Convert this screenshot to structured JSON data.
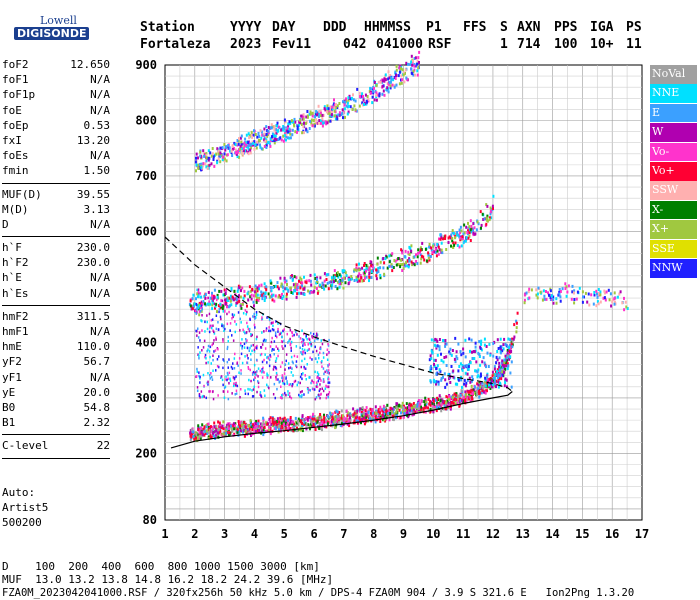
{
  "logo": {
    "top": "Lowell",
    "bottom": "DIGISONDE"
  },
  "header": {
    "labels": [
      "Station",
      "YYYY",
      "DAY",
      "DDD",
      "HHMMSS",
      "P1",
      "FFS",
      "S",
      "AXN",
      "PPS",
      "IGA",
      "PS"
    ],
    "values": [
      "Fortaleza",
      "2023",
      "Fev11",
      "042",
      "041000",
      "RSF",
      "1",
      "714",
      "100",
      "10+",
      "11"
    ]
  },
  "params": {
    "group1": [
      {
        "label": "foF2",
        "value": "12.650"
      },
      {
        "label": "foF1",
        "value": "N/A"
      },
      {
        "label": "foF1p",
        "value": "N/A"
      },
      {
        "label": "foE",
        "value": "N/A"
      },
      {
        "label": "foEp",
        "value": "0.53"
      },
      {
        "label": "fxI",
        "value": "13.20"
      },
      {
        "label": "foEs",
        "value": "N/A"
      },
      {
        "label": "fmin",
        "value": "1.50"
      }
    ],
    "group2": [
      {
        "label": "MUF(D)",
        "value": "39.55"
      },
      {
        "label": "M(D)",
        "value": "3.13"
      },
      {
        "label": "D",
        "value": "N/A"
      }
    ],
    "group3": [
      {
        "label": "h`F",
        "value": "230.0"
      },
      {
        "label": "h`F2",
        "value": "230.0"
      },
      {
        "label": "h`E",
        "value": "N/A"
      },
      {
        "label": "h`Es",
        "value": "N/A"
      }
    ],
    "group4": [
      {
        "label": "hmF2",
        "value": "311.5"
      },
      {
        "label": "hmF1",
        "value": "N/A"
      },
      {
        "label": "hmE",
        "value": "110.0"
      },
      {
        "label": "yF2",
        "value": "56.7"
      },
      {
        "label": "yF1",
        "value": "N/A"
      },
      {
        "label": "yE",
        "value": "20.0"
      },
      {
        "label": "B0",
        "value": "54.8"
      },
      {
        "label": "B1",
        "value": "2.32"
      }
    ],
    "group5": [
      {
        "label": "C-level",
        "value": "22"
      }
    ]
  },
  "auto": {
    "line1": "Auto:",
    "line2": "Artist5",
    "line3": "500200"
  },
  "legend": [
    {
      "label": "NoVal",
      "color": "#a0a0a0"
    },
    {
      "label": "NNE",
      "color": "#00e0ff"
    },
    {
      "label": "E",
      "color": "#3ba0ff"
    },
    {
      "label": "W",
      "color": "#b000b0"
    },
    {
      "label": "Vo-",
      "color": "#ff33cc"
    },
    {
      "label": "Vo+",
      "color": "#ff0033"
    },
    {
      "label": "SSW",
      "color": "#ffb0b0"
    },
    {
      "label": "X-",
      "color": "#008000"
    },
    {
      "label": "X+",
      "color": "#a0c840"
    },
    {
      "label": "SSE",
      "color": "#e0e000"
    },
    {
      "label": "NNW",
      "color": "#2020ff"
    }
  ],
  "footer": {
    "line1": "D    100  200  400  600  800 1000 1500 3000 [km]",
    "line2": "MUF  13.0 13.2 13.8 14.8 16.2 18.2 24.2 39.6 [MHz]",
    "line3": "FZA0M_2023042041000.RSF / 320fx256h 50 kHz 5.0 km / DPS-4 FZA0M 904 / 3.9 S 321.6 E   Ion2Png 1.3.20"
  },
  "chart_data": {
    "type": "scatter",
    "title": "",
    "xlabel": "",
    "ylabel": "",
    "xlim": [
      1,
      17
    ],
    "ylim": [
      80,
      900
    ],
    "xticks": [
      1,
      2,
      3,
      4,
      5,
      6,
      7,
      8,
      9,
      10,
      11,
      12,
      13,
      14,
      15,
      16,
      17
    ],
    "yticks": [
      80,
      200,
      300,
      400,
      500,
      600,
      700,
      800,
      900
    ],
    "grid": true,
    "traces": [
      {
        "name": "F2 trace (1st hop)",
        "points": [
          [
            1.8,
            235
          ],
          [
            2.5,
            240
          ],
          [
            3.5,
            243
          ],
          [
            4.5,
            248
          ],
          [
            5.5,
            252
          ],
          [
            6.5,
            258
          ],
          [
            7.5,
            265
          ],
          [
            8.5,
            272
          ],
          [
            9.5,
            282
          ],
          [
            10.5,
            292
          ],
          [
            11.0,
            300
          ],
          [
            11.5,
            312
          ],
          [
            12.0,
            330
          ],
          [
            12.3,
            350
          ],
          [
            12.5,
            375
          ],
          [
            12.65,
            410
          ],
          [
            12.8,
            440
          ]
        ]
      },
      {
        "name": "F2 trace (2nd hop)",
        "points": [
          [
            1.8,
            465
          ],
          [
            2.5,
            470
          ],
          [
            3.5,
            478
          ],
          [
            4.5,
            488
          ],
          [
            5.5,
            498
          ],
          [
            6.5,
            508
          ],
          [
            7.5,
            522
          ],
          [
            8.5,
            538
          ],
          [
            9.5,
            556
          ],
          [
            10.5,
            578
          ],
          [
            11.0,
            592
          ],
          [
            11.5,
            610
          ],
          [
            12.0,
            640
          ]
        ]
      },
      {
        "name": "F2 trace (3rd hop)",
        "points": [
          [
            2.0,
            720
          ],
          [
            3.0,
            740
          ],
          [
            4.0,
            760
          ],
          [
            5.0,
            780
          ],
          [
            6.0,
            800
          ],
          [
            7.0,
            822
          ],
          [
            7.5,
            835
          ],
          [
            8.0,
            850
          ],
          [
            8.5,
            868
          ],
          [
            9.0,
            885
          ],
          [
            9.5,
            900
          ]
        ]
      },
      {
        "name": "spread echoes",
        "points": [
          [
            13.0,
            480
          ],
          [
            13.5,
            485
          ],
          [
            14.0,
            478
          ],
          [
            14.5,
            490
          ],
          [
            15.0,
            475
          ],
          [
            15.5,
            482
          ],
          [
            16.0,
            478
          ],
          [
            16.5,
            470
          ]
        ]
      }
    ],
    "profile_solid": [
      [
        1.2,
        210
      ],
      [
        2,
        222
      ],
      [
        3,
        230
      ],
      [
        4,
        236
      ],
      [
        5,
        241
      ],
      [
        6,
        247
      ],
      [
        7,
        253
      ],
      [
        8,
        260
      ],
      [
        9,
        268
      ],
      [
        10,
        278
      ],
      [
        11,
        290
      ],
      [
        12,
        300
      ],
      [
        12.5,
        305
      ],
      [
        12.65,
        311.5
      ]
    ],
    "profile_dashed": [
      [
        1.0,
        590
      ],
      [
        2,
        540
      ],
      [
        3,
        500
      ],
      [
        4,
        460
      ],
      [
        5,
        430
      ],
      [
        6,
        410
      ],
      [
        7,
        392
      ],
      [
        8,
        375
      ],
      [
        9,
        360
      ],
      [
        10,
        345
      ],
      [
        11,
        335
      ],
      [
        12,
        326
      ],
      [
        12.5,
        318
      ],
      [
        12.65,
        311.5
      ]
    ]
  }
}
